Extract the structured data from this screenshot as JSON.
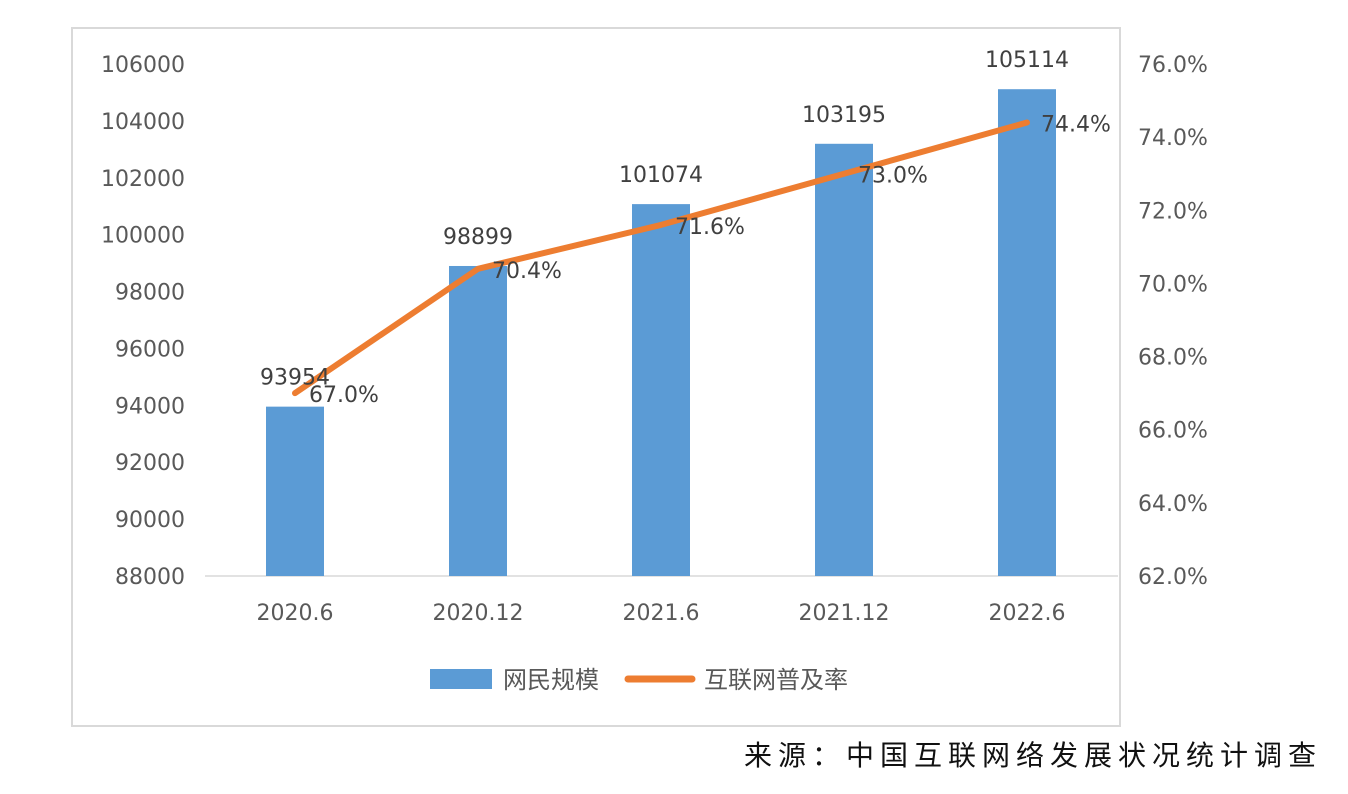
{
  "chart_data": {
    "type": "bar+line",
    "categories": [
      "2020.6",
      "2020.12",
      "2021.6",
      "2021.12",
      "2022.6"
    ],
    "series": [
      {
        "name": "网民规模",
        "type": "bar",
        "axis": "left",
        "color": "#5B9BD5",
        "values": [
          93954,
          98899,
          101074,
          103195,
          105114
        ],
        "labels": [
          "93954",
          "98899",
          "101074",
          "103195",
          "105114"
        ]
      },
      {
        "name": "互联网普及率",
        "type": "line",
        "axis": "right",
        "color": "#ED7D31",
        "values": [
          67.0,
          70.4,
          71.6,
          73.0,
          74.4
        ],
        "labels": [
          "67.0%",
          "70.4%",
          "71.6%",
          "73.0%",
          "74.4%"
        ]
      }
    ],
    "y_left": {
      "range": [
        88000,
        106000
      ],
      "ticks": [
        "88000",
        "90000",
        "92000",
        "94000",
        "96000",
        "98000",
        "100000",
        "102000",
        "104000",
        "106000"
      ]
    },
    "y_right": {
      "range": [
        62,
        76
      ],
      "ticks": [
        "62.0%",
        "64.0%",
        "66.0%",
        "68.0%",
        "70.0%",
        "72.0%",
        "74.0%",
        "76.0%"
      ]
    },
    "grid": false,
    "legend": "bottom",
    "source": "来源：中国互联网络发展状况统计调查"
  }
}
